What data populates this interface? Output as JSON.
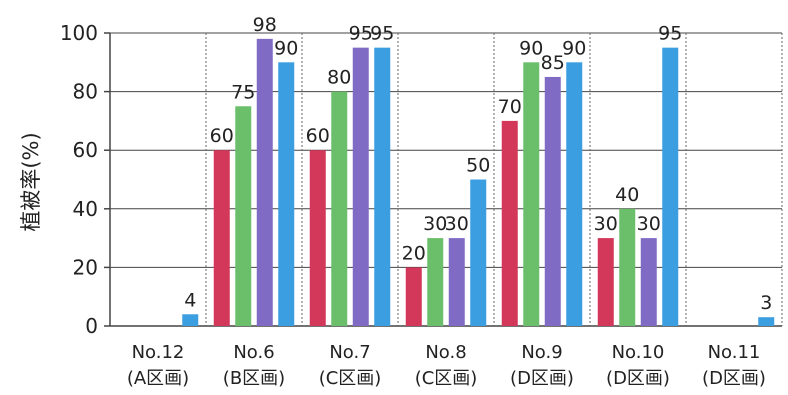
{
  "chart_data": {
    "type": "bar",
    "ylabel": "植被率(%)",
    "ylim": [
      0,
      100
    ],
    "yticks": [
      "0",
      "20",
      "40",
      "60",
      "80",
      "100"
    ],
    "grid": true,
    "categories": [
      [
        "No.12",
        "(A区画)"
      ],
      [
        "No.6",
        "(B区画)"
      ],
      [
        "No.7",
        "(C区画)"
      ],
      [
        "No.8",
        "(C区画)"
      ],
      [
        "No.9",
        "(D区画)"
      ],
      [
        "No.10",
        "(D区画)"
      ],
      [
        "No.11",
        "(D区画)"
      ]
    ],
    "series": [
      {
        "color": "#d3375a",
        "values": [
          null,
          60,
          60,
          20,
          70,
          30,
          null
        ],
        "labels": [
          "",
          "60",
          "60",
          "20",
          "70",
          "30",
          ""
        ]
      },
      {
        "color": "#6cbf6a",
        "values": [
          null,
          75,
          80,
          30,
          90,
          40,
          null
        ],
        "labels": [
          "",
          "75",
          "80",
          "30",
          "90",
          "40",
          ""
        ]
      },
      {
        "color": "#7f6ac4",
        "values": [
          null,
          98,
          95,
          30,
          85,
          30,
          null
        ],
        "labels": [
          "",
          "98",
          "95",
          "30",
          "85",
          "30",
          ""
        ]
      },
      {
        "color": "#3b9ee0",
        "values": [
          4,
          90,
          95,
          50,
          90,
          95,
          3
        ],
        "labels": [
          "4",
          "90",
          "95",
          "50",
          "90",
          "95",
          "3"
        ]
      }
    ]
  }
}
